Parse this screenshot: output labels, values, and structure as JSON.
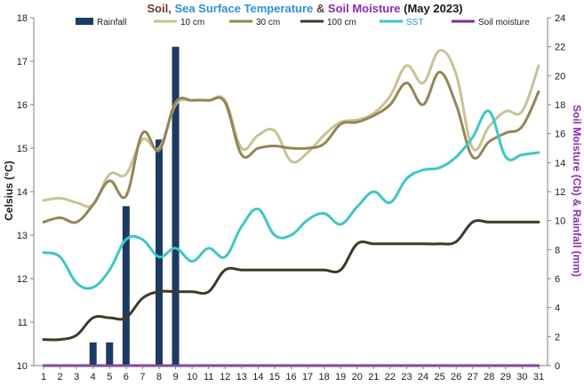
{
  "title": {
    "parts": [
      {
        "text": "Soil",
        "color": "#6b3a2a"
      },
      {
        "text": ", ",
        "color": "#6b3a2a"
      },
      {
        "text": "Sea Surface Temperature",
        "color": "#2f8fd8"
      },
      {
        "text": " & ",
        "color": "#6b3a2a"
      },
      {
        "text": "Soil Moisture",
        "color": "#8a2bb0"
      },
      {
        "text": " (May 2023)",
        "color": "#1a1a1a"
      }
    ]
  },
  "chart_data": {
    "type": "line",
    "x": [
      1,
      2,
      3,
      4,
      5,
      6,
      7,
      8,
      9,
      10,
      11,
      12,
      13,
      14,
      15,
      16,
      17,
      18,
      19,
      20,
      21,
      22,
      23,
      24,
      25,
      26,
      27,
      28,
      29,
      30,
      31
    ],
    "xlim": [
      1,
      31
    ],
    "ylabel": "Celsius (°C)",
    "ylim": [
      10,
      18
    ],
    "yticks": [
      10,
      11,
      12,
      13,
      14,
      15,
      16,
      17,
      18
    ],
    "y2label": "Soil Moisture (Cb) & Rainfall (mm)",
    "y2lim": [
      0,
      24
    ],
    "y2ticks": [
      0,
      2,
      4,
      6,
      8,
      10,
      12,
      14,
      16,
      18,
      20,
      22,
      24
    ],
    "grid": false,
    "legend_position": "top",
    "series": [
      {
        "name": "Rainfall",
        "kind": "bar",
        "axis": "right",
        "color": "#1c3a63",
        "values": [
          0,
          0,
          0,
          1.6,
          1.6,
          11,
          0,
          15.6,
          22,
          0,
          0,
          0,
          0,
          0,
          0,
          0,
          0,
          0,
          0,
          0,
          0,
          0,
          0,
          0,
          0,
          0,
          0,
          0,
          0,
          0,
          0
        ]
      },
      {
        "name": "10 cm",
        "kind": "line",
        "axis": "left",
        "color": "#c8c297",
        "values": [
          13.8,
          13.85,
          13.75,
          13.7,
          14.4,
          14.4,
          15.2,
          15.0,
          16.0,
          16.1,
          16.1,
          16.1,
          15.0,
          15.3,
          15.4,
          14.7,
          14.9,
          15.3,
          15.6,
          15.65,
          15.8,
          16.2,
          16.9,
          16.5,
          17.25,
          16.7,
          15.0,
          15.5,
          15.85,
          15.85,
          16.9
        ]
      },
      {
        "name": "30 cm",
        "kind": "line",
        "axis": "left",
        "color": "#958555",
        "values": [
          13.3,
          13.4,
          13.3,
          13.7,
          14.25,
          13.9,
          15.35,
          14.95,
          16.05,
          16.1,
          16.1,
          16.05,
          14.85,
          15.0,
          15.05,
          15.0,
          15.0,
          15.1,
          15.55,
          15.6,
          15.75,
          16.0,
          16.5,
          16.0,
          16.75,
          16.0,
          14.8,
          15.15,
          15.35,
          15.5,
          16.3
        ]
      },
      {
        "name": "100 cm",
        "kind": "line",
        "axis": "left",
        "color": "#3f3a28",
        "values": [
          10.6,
          10.6,
          10.7,
          11.1,
          11.1,
          11.1,
          11.55,
          11.7,
          11.7,
          11.7,
          11.7,
          12.2,
          12.2,
          12.2,
          12.2,
          12.2,
          12.2,
          12.2,
          12.2,
          12.8,
          12.8,
          12.8,
          12.8,
          12.8,
          12.8,
          12.85,
          13.3,
          13.3,
          13.3,
          13.3,
          13.3
        ]
      },
      {
        "name": "SST",
        "kind": "line",
        "axis": "left",
        "color": "#3ec6c9",
        "values": [
          12.6,
          12.5,
          11.9,
          11.8,
          12.2,
          12.9,
          12.9,
          12.5,
          12.7,
          12.4,
          12.7,
          12.5,
          13.2,
          13.6,
          13.0,
          13.0,
          13.35,
          13.5,
          13.25,
          13.65,
          14.0,
          13.75,
          14.3,
          14.5,
          14.55,
          14.8,
          15.25,
          15.85,
          14.8,
          14.85,
          14.9
        ]
      },
      {
        "name": "Soil moisture",
        "kind": "line",
        "axis": "right",
        "color": "#7b2b9e",
        "values": [
          0,
          0,
          0,
          0,
          0,
          0,
          0,
          0,
          0,
          0,
          0,
          0,
          0,
          0,
          0,
          0,
          0,
          0,
          0,
          0,
          0,
          0,
          0,
          0,
          0,
          0,
          0,
          0,
          0,
          0,
          0
        ]
      }
    ]
  },
  "colors": {
    "left_axis_title": "#1a1a1a",
    "right_axis_title": "#8a2bb0",
    "left_ticks": "#1a1a1a",
    "right_ticks": "#8a2bb0",
    "axis_line": "#808080"
  }
}
